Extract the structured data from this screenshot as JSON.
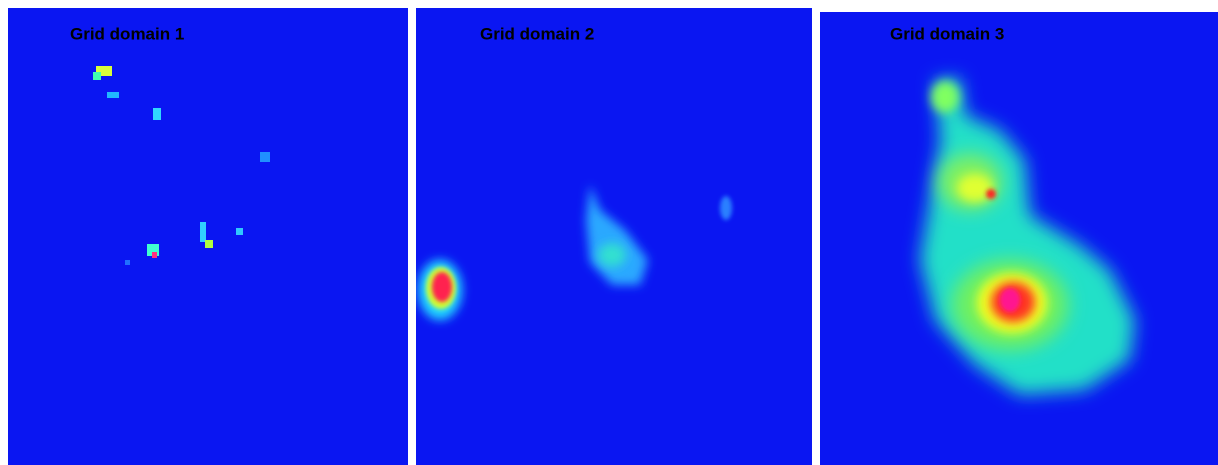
{
  "panels": [
    {
      "title": "Grid domain 1"
    },
    {
      "title": "Grid domain 2"
    },
    {
      "title": "Grid domain 3"
    }
  ]
}
